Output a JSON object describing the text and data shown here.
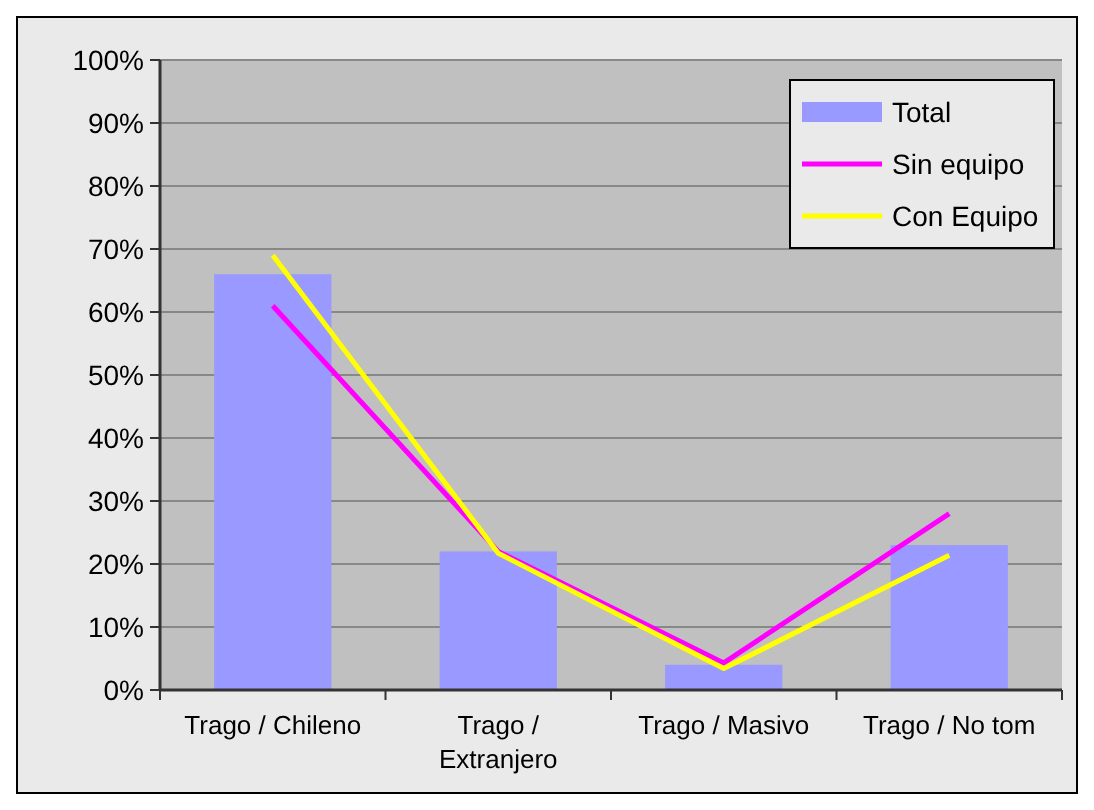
{
  "chart_data": {
    "type": "bar",
    "categories": [
      "Trago / Chileno",
      "Trago / Extranjero",
      "Trago / Masivo",
      "Trago / No tom"
    ],
    "series": [
      {
        "name": "Total",
        "color": "#9999ff",
        "values": [
          66,
          22,
          4,
          23
        ]
      },
      {
        "name": "Sin equipo",
        "type": "line",
        "color": "#ff00ff",
        "values": [
          61,
          22,
          4.3,
          28
        ]
      },
      {
        "name": "Con Equipo",
        "type": "line",
        "color": "#ffff00",
        "values": [
          69,
          21.7,
          3.4,
          21.4
        ]
      }
    ],
    "ylim": [
      0,
      100
    ],
    "yticks": [
      {
        "value": 0,
        "label": "0%"
      },
      {
        "value": 10,
        "label": "10%"
      },
      {
        "value": 20,
        "label": "20%"
      },
      {
        "value": 30,
        "label": "30%"
      },
      {
        "value": 40,
        "label": "40%"
      },
      {
        "value": 50,
        "label": "50%"
      },
      {
        "value": 60,
        "label": "60%"
      },
      {
        "value": 70,
        "label": "70%"
      },
      {
        "value": 80,
        "label": "80%"
      },
      {
        "value": 90,
        "label": "90%"
      },
      {
        "value": 100,
        "label": "100%"
      }
    ],
    "grid": "y",
    "legend": "top right",
    "marker": "none",
    "line_style": "solid"
  }
}
